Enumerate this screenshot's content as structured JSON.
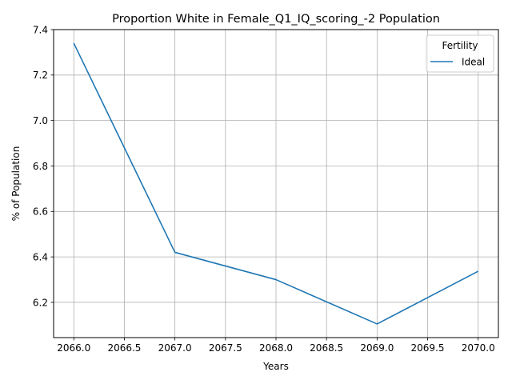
{
  "chart_data": {
    "type": "line",
    "title": "Proportion White in Female_Q1_IQ_scoring_-2 Population",
    "xlabel": "Years",
    "ylabel": "% of Population",
    "xlim": [
      2065.8,
      2070.2
    ],
    "ylim": [
      6.045,
      7.4
    ],
    "x_ticks": [
      2066.0,
      2066.5,
      2067.0,
      2067.5,
      2068.0,
      2068.5,
      2069.0,
      2069.5,
      2070.0
    ],
    "x_tick_labels": [
      "2066.0",
      "2066.5",
      "2067.0",
      "2067.5",
      "2068.0",
      "2068.5",
      "2069.0",
      "2069.5",
      "2070.0"
    ],
    "y_ticks": [
      6.2,
      6.4,
      6.6,
      6.8,
      7.0,
      7.2,
      7.4
    ],
    "y_tick_labels": [
      "6.2",
      "6.4",
      "6.6",
      "6.8",
      "7.0",
      "7.2",
      "7.4"
    ],
    "grid": true,
    "legend": {
      "title": "Fertility",
      "placement": "top-right",
      "entries": [
        "Ideal"
      ]
    },
    "series": [
      {
        "name": "Ideal",
        "color": "#1f77b4",
        "x": [
          2066,
          2067,
          2068,
          2069,
          2070
        ],
        "y": [
          7.34,
          6.42,
          6.3,
          6.105,
          6.337
        ]
      }
    ]
  }
}
